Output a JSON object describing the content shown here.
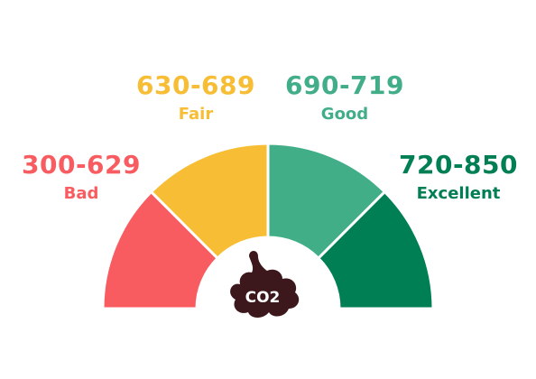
{
  "bands": [
    {
      "range": "300-629",
      "name": "Bad",
      "color": "#f95c60"
    },
    {
      "range": "630-689",
      "name": "Fair",
      "color": "#f7bd34"
    },
    {
      "range": "690-719",
      "name": "Good",
      "color": "#42ae88"
    },
    {
      "range": "720-850",
      "name": "Excellent",
      "color": "#007f54"
    }
  ],
  "center_icon": {
    "name": "co2-cloud-icon",
    "text": "CO2",
    "color": "#3c171b"
  }
}
